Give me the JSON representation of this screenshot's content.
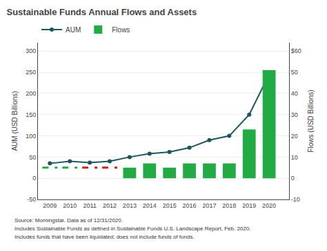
{
  "chart_data": {
    "type": "bar",
    "title": "Sustainable Funds Annual Flows and Assets",
    "x": [
      2009,
      2010,
      2011,
      2012,
      2013,
      2014,
      2015,
      2016,
      2017,
      2018,
      2019,
      2020
    ],
    "xlim": [
      2008.4,
      2021.0
    ],
    "xticks": [
      2009,
      2010,
      2011,
      2012,
      2013,
      2014,
      2015,
      2016,
      2017,
      2018,
      2019,
      2020
    ],
    "ylabel": "AUM (USD Billions)",
    "y2label": "Flows (USD Billions)",
    "ylim": [
      -50,
      320
    ],
    "yticks": [
      -50,
      0,
      50,
      100,
      150,
      200,
      250,
      300
    ],
    "y2lim": [
      -10,
      64
    ],
    "y2ticks": [
      -10,
      0,
      10,
      20,
      30,
      40,
      50,
      {
        "value": 60,
        "label": "$60"
      }
    ],
    "grid": true,
    "legend": "upper left",
    "series": [
      {
        "name": "AUM",
        "type": "line",
        "color": "#1a5560",
        "marker": "circle",
        "values": [
          35,
          40,
          37,
          40,
          50,
          58,
          62,
          72,
          90,
          100,
          150,
          245
        ]
      },
      {
        "name": "Flows",
        "type": "bar",
        "axis": "y2",
        "color": "#22aa44",
        "colors": [
          "#22aa44",
          "#22aa44",
          "#cc2222",
          "#cc2222",
          "#22aa44",
          "#22aa44",
          "#22aa44",
          "#22aa44",
          "#22aa44",
          "#22aa44",
          "#22aa44",
          "#22aa44"
        ],
        "values": [
          null,
          null,
          null,
          null,
          5,
          7,
          5,
          7,
          7,
          7,
          23,
          51
        ]
      },
      {
        "type": "line",
        "axis": "y2",
        "line_style": "dashed",
        "colors": [
          "#22aa44",
          "#22aa44",
          "#cc2222",
          "#cc2222",
          "#22aa44",
          "#22aa44",
          "#22aa44",
          "#22aa44",
          "#22aa44",
          "#22aa44",
          "#22aa44",
          "#22aa44"
        ],
        "values": [
          5,
          5,
          5,
          5,
          null,
          null,
          null,
          null,
          null,
          null,
          null,
          null
        ]
      }
    ],
    "annotations": [
      "Source: Morningstar. Data as of 12/31/2020.",
      "Includes Sustainable Funds as defined in Sustainable Funds U.S. Landscape Report, Feb. 2020.",
      "Includes funds that have been liquidated; does not include funds of funds."
    ]
  }
}
